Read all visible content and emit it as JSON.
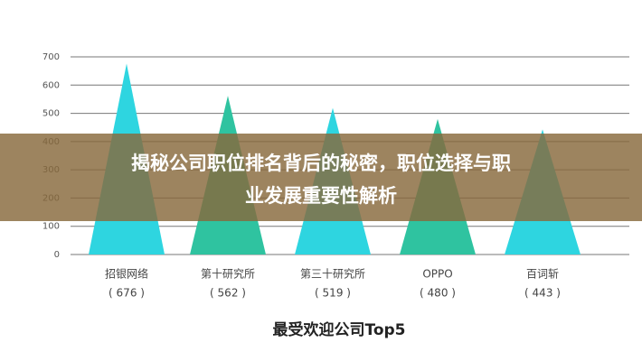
{
  "chart_data": {
    "type": "bar",
    "title": "最受欢迎公司Top5",
    "categories": [
      "招银网络",
      "第十研究所",
      "第三十研究所",
      "OPPO",
      "百词斩"
    ],
    "values": [
      676,
      562,
      519,
      480,
      443
    ],
    "value_labels": [
      "( 676 )",
      "( 562 )",
      "( 519 )",
      "( 480 )",
      "( 443 )"
    ],
    "colors": [
      "#2ed5e0",
      "#2fc3a0",
      "#2ed5e0",
      "#2fc3a0",
      "#2ed5e0"
    ],
    "ylim": [
      0,
      700
    ],
    "yticks": [
      0,
      100,
      200,
      300,
      400,
      500,
      600,
      700
    ],
    "grid": true
  },
  "banner": [
    "揭秘公司职位排名背后的秘密，职位选择与职",
    "业发展重要性解析"
  ]
}
